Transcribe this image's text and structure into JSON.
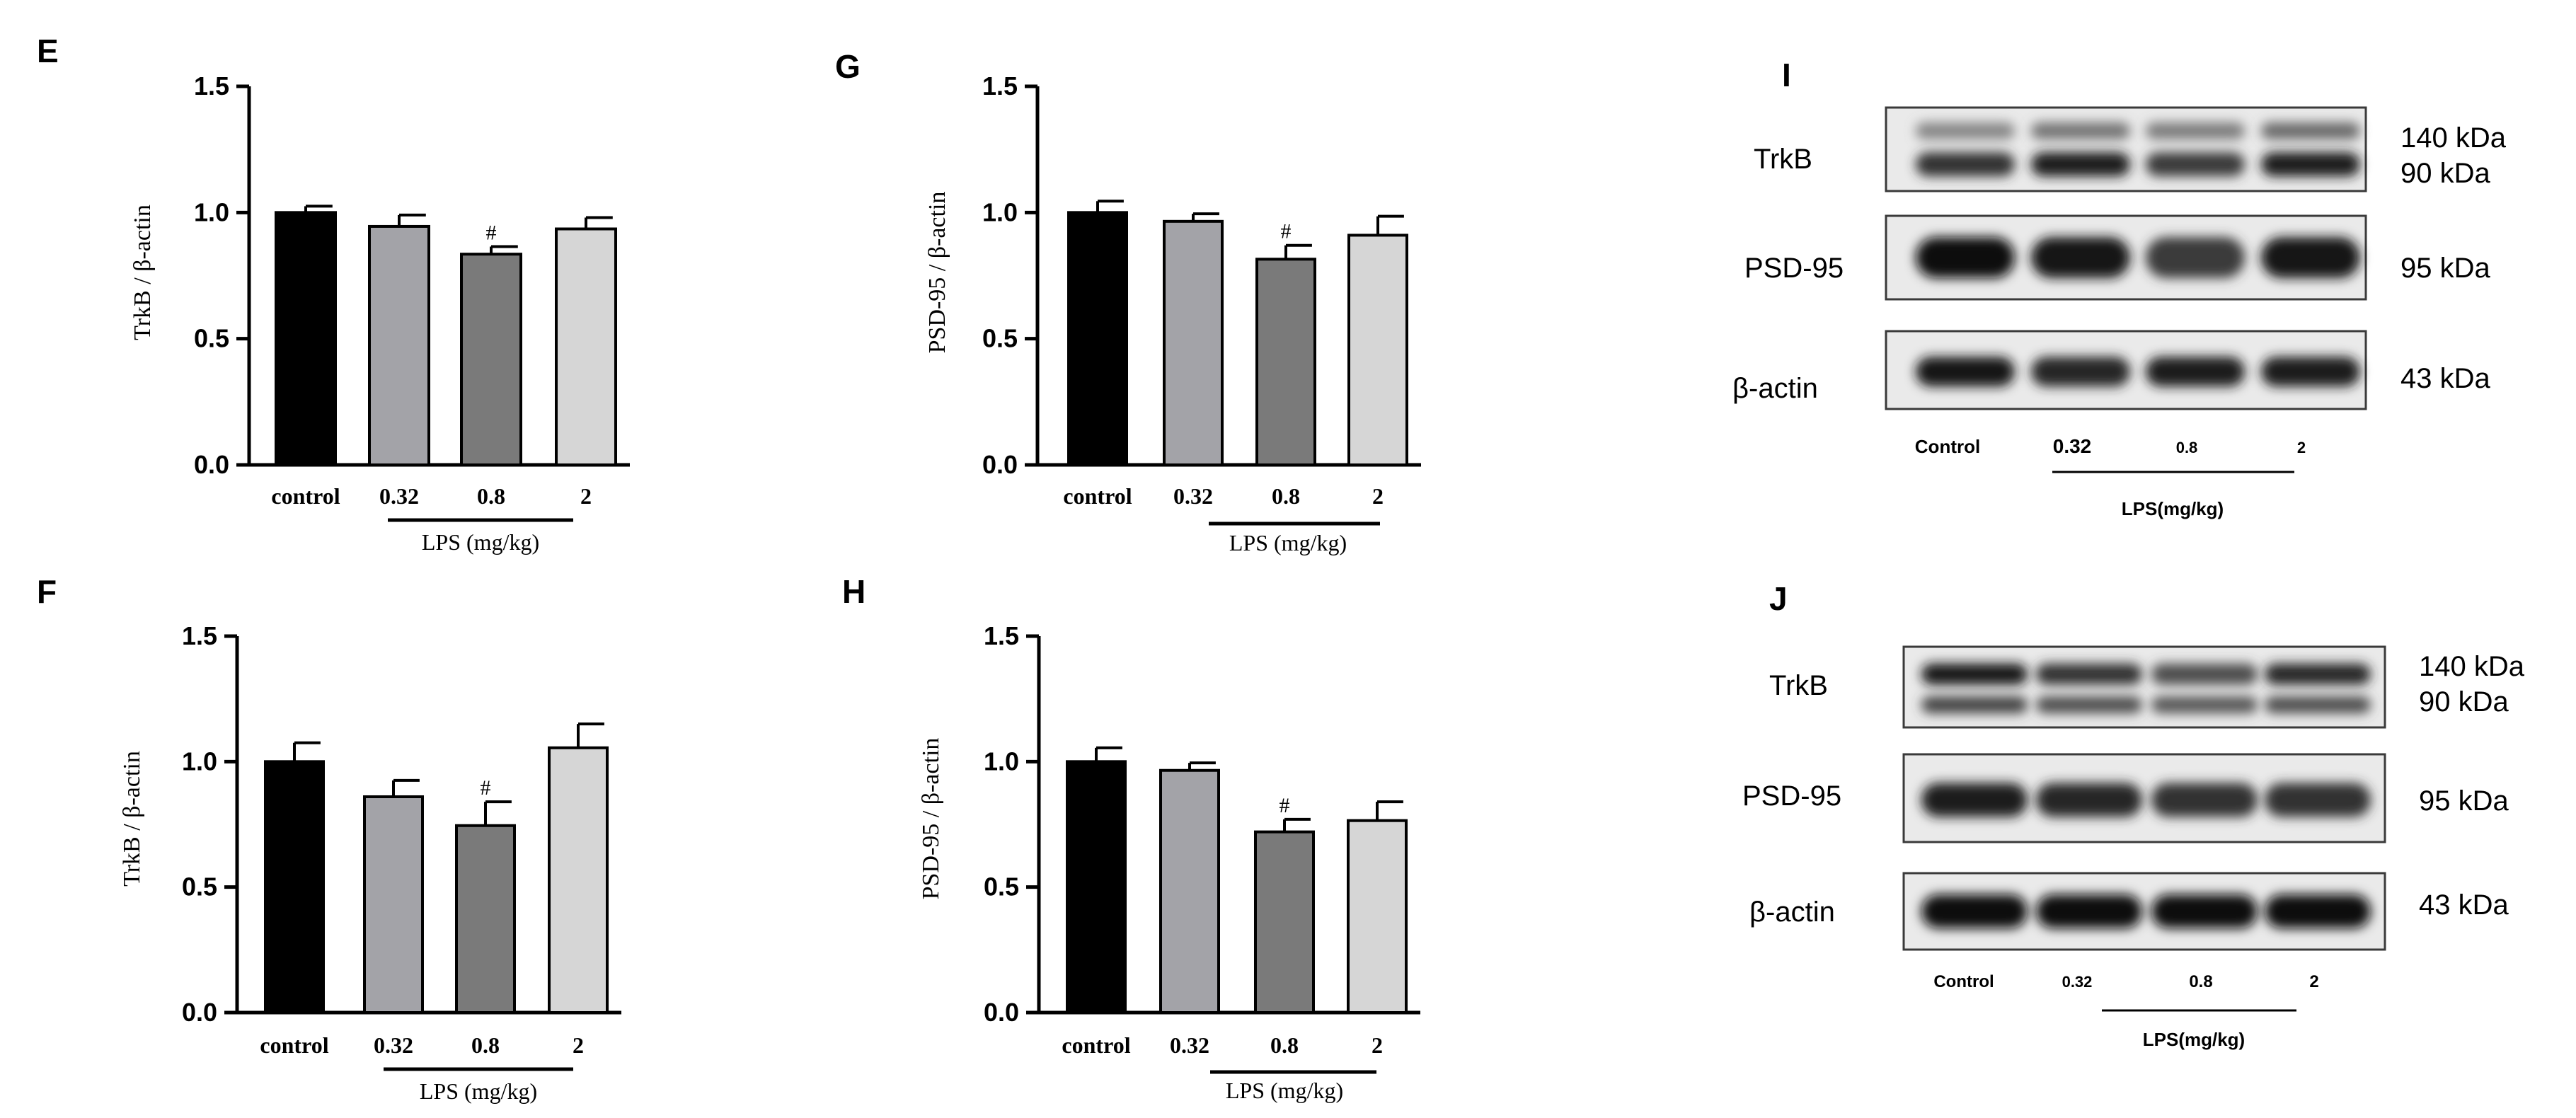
{
  "chart_data": [
    {
      "panel": "E",
      "type": "bar",
      "ylabel": "TrkB / β-actin",
      "ylim": [
        0,
        1.5
      ],
      "yticks": [
        "0.0",
        "0.5",
        "1.0",
        "1.5"
      ],
      "categories": [
        "control",
        "0.32",
        "0.8",
        "2"
      ],
      "values": [
        1.0,
        0.945,
        0.835,
        0.935
      ],
      "errors": [
        0.025,
        0.045,
        0.03,
        0.045
      ],
      "annotations": [
        "",
        "",
        "#",
        ""
      ],
      "group_label": "LPS (mg/kg)",
      "colors": [
        "#000000",
        "#a3a3a8",
        "#7a7a7a",
        "#d6d6d6"
      ]
    },
    {
      "panel": "F",
      "type": "bar",
      "ylabel": "TrkB / β-actin",
      "ylim": [
        0,
        1.5
      ],
      "yticks": [
        "0.0",
        "0.5",
        "1.0",
        "1.5"
      ],
      "categories": [
        "control",
        "0.32",
        "0.8",
        "2"
      ],
      "values": [
        1.0,
        0.86,
        0.745,
        1.055
      ],
      "errors": [
        0.075,
        0.065,
        0.095,
        0.095
      ],
      "annotations": [
        "",
        "",
        "#",
        ""
      ],
      "group_label": "LPS (mg/kg)",
      "colors": [
        "#000000",
        "#a3a3a8",
        "#7a7a7a",
        "#d6d6d6"
      ]
    },
    {
      "panel": "G",
      "type": "bar",
      "ylabel": "PSD-95 / β-actin",
      "ylim": [
        0,
        1.5
      ],
      "yticks": [
        "0.0",
        "0.5",
        "1.0",
        "1.5"
      ],
      "categories": [
        "control",
        "0.32",
        "0.8",
        "2"
      ],
      "values": [
        1.0,
        0.965,
        0.815,
        0.91
      ],
      "errors": [
        0.045,
        0.03,
        0.055,
        0.075
      ],
      "annotations": [
        "",
        "",
        "#",
        ""
      ],
      "group_label": "LPS (mg/kg)",
      "colors": [
        "#000000",
        "#a3a3a8",
        "#7a7a7a",
        "#d6d6d6"
      ]
    },
    {
      "panel": "H",
      "type": "bar",
      "ylabel": "PSD-95 / β-actin",
      "ylim": [
        0,
        1.5
      ],
      "yticks": [
        "0.0",
        "0.5",
        "1.0",
        "1.5"
      ],
      "categories": [
        "control",
        "0.32",
        "0.8",
        "2"
      ],
      "values": [
        1.0,
        0.965,
        0.72,
        0.765
      ],
      "errors": [
        0.055,
        0.03,
        0.05,
        0.075
      ],
      "annotations": [
        "",
        "",
        "#",
        ""
      ],
      "group_label": "LPS (mg/kg)",
      "colors": [
        "#000000",
        "#a3a3a8",
        "#7a7a7a",
        "#d6d6d6"
      ]
    }
  ],
  "blots": [
    {
      "panel": "I",
      "rows": [
        "TrkB",
        "PSD-95",
        "β-actin"
      ],
      "sizes": [
        [
          "140 kDa",
          "90 kDa"
        ],
        [
          "95 kDa"
        ],
        [
          "43 kDa"
        ]
      ],
      "lanes": [
        "Control",
        "0.32",
        "0.8",
        "2"
      ],
      "group_label": "LPS(mg/kg)",
      "intensity": {
        "TrkB_140": [
          0.35,
          0.45,
          0.4,
          0.5
        ],
        "TrkB_90": [
          0.8,
          0.9,
          0.75,
          0.9
        ],
        "PSD95": [
          1.0,
          0.95,
          0.75,
          0.95
        ],
        "actin": [
          0.95,
          0.85,
          0.9,
          0.9
        ]
      }
    },
    {
      "panel": "J",
      "rows": [
        "TrkB",
        "PSD-95",
        "β-actin"
      ],
      "sizes": [
        [
          "140 kDa",
          "90 kDa"
        ],
        [
          "95 kDa"
        ],
        [
          "43 kDa"
        ]
      ],
      "lanes": [
        "Control",
        "0.32",
        "0.8",
        "2"
      ],
      "group_label": "LPS(mg/kg)",
      "intensity": {
        "TrkB_140": [
          0.95,
          0.8,
          0.65,
          0.85
        ],
        "TrkB_90": [
          0.7,
          0.65,
          0.6,
          0.65
        ],
        "PSD95": [
          0.9,
          0.85,
          0.8,
          0.8
        ],
        "actin": [
          1.0,
          1.0,
          1.0,
          1.0
        ]
      }
    }
  ]
}
